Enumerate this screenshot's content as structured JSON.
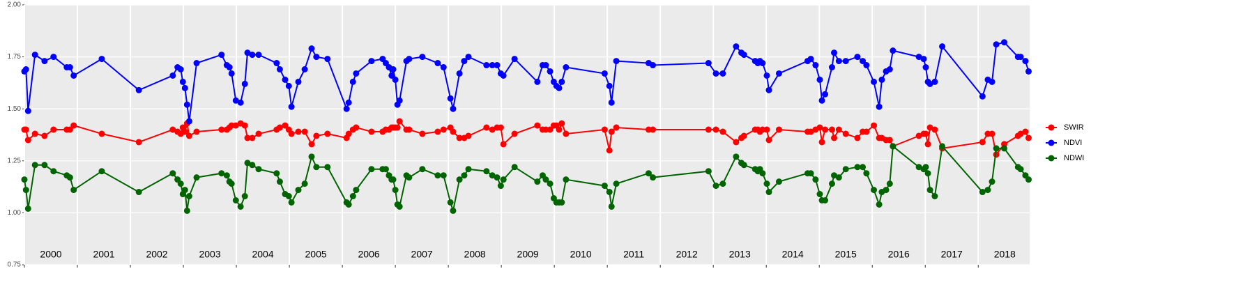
{
  "chart_data": {
    "type": "line",
    "x": [
      2000.0,
      2000.03,
      2000.07,
      2000.2,
      2000.38,
      2000.55,
      2000.8,
      2000.86,
      2000.93,
      2001.46,
      2002.16,
      2002.8,
      2002.89,
      2002.95,
      2002.99,
      2003.03,
      2003.07,
      2003.11,
      2003.25,
      2003.72,
      2003.82,
      2003.87,
      2003.91,
      2003.99,
      2004.08,
      2004.16,
      2004.21,
      2004.3,
      2004.42,
      2004.76,
      2004.82,
      2004.92,
      2004.99,
      2005.04,
      2005.17,
      2005.29,
      2005.42,
      2005.51,
      2005.72,
      2006.08,
      2006.12,
      2006.2,
      2006.26,
      2006.55,
      2006.76,
      2006.82,
      2006.88,
      2006.93,
      2006.96,
      2007.0,
      2007.04,
      2007.08,
      2007.21,
      2007.26,
      2007.51,
      2007.8,
      2007.91,
      2008.04,
      2008.09,
      2008.21,
      2008.3,
      2008.38,
      2008.72,
      2008.83,
      2008.92,
      2008.99,
      2009.04,
      2009.25,
      2009.68,
      2009.78,
      2009.84,
      2009.92,
      2009.99,
      2010.04,
      2010.09,
      2010.14,
      2010.22,
      2010.95,
      2011.04,
      2011.08,
      2011.17,
      2011.78,
      2011.86,
      2012.91,
      2013.05,
      2013.18,
      2013.43,
      2013.53,
      2013.58,
      2013.79,
      2013.84,
      2013.88,
      2013.93,
      2014.01,
      2014.05,
      2014.24,
      2014.78,
      2014.84,
      2014.93,
      2015.01,
      2015.05,
      2015.11,
      2015.24,
      2015.28,
      2015.37,
      2015.5,
      2015.72,
      2015.82,
      2015.89,
      2016.03,
      2016.13,
      2016.18,
      2016.26,
      2016.33,
      2016.39,
      2016.88,
      2016.97,
      2017.01,
      2017.05,
      2017.09,
      2017.18,
      2017.32,
      2018.08,
      2018.18,
      2018.26,
      2018.34,
      2018.49,
      2018.75,
      2018.8,
      2018.89,
      2018.95
    ],
    "series": [
      {
        "name": "SWIR",
        "color": "#ff0000",
        "values": [
          1.4,
          1.4,
          1.35,
          1.38,
          1.37,
          1.4,
          1.4,
          1.4,
          1.42,
          1.38,
          1.34,
          1.4,
          1.39,
          1.38,
          1.41,
          1.39,
          1.43,
          1.37,
          1.39,
          1.4,
          1.4,
          1.41,
          1.42,
          1.42,
          1.43,
          1.42,
          1.36,
          1.36,
          1.38,
          1.4,
          1.41,
          1.42,
          1.4,
          1.38,
          1.39,
          1.39,
          1.33,
          1.37,
          1.38,
          1.36,
          1.38,
          1.4,
          1.41,
          1.39,
          1.39,
          1.4,
          1.4,
          1.41,
          1.41,
          1.41,
          1.41,
          1.44,
          1.4,
          1.4,
          1.38,
          1.39,
          1.4,
          1.41,
          1.39,
          1.36,
          1.36,
          1.37,
          1.41,
          1.4,
          1.41,
          1.41,
          1.33,
          1.38,
          1.42,
          1.4,
          1.4,
          1.4,
          1.42,
          1.42,
          1.4,
          1.43,
          1.38,
          1.4,
          1.3,
          1.39,
          1.41,
          1.4,
          1.4,
          1.4,
          1.4,
          1.39,
          1.34,
          1.36,
          1.37,
          1.4,
          1.4,
          1.39,
          1.4,
          1.4,
          1.35,
          1.4,
          1.39,
          1.39,
          1.4,
          1.41,
          1.34,
          1.4,
          1.4,
          1.36,
          1.4,
          1.38,
          1.36,
          1.39,
          1.39,
          1.42,
          1.36,
          1.36,
          1.35,
          1.35,
          1.32,
          1.37,
          1.38,
          1.38,
          1.33,
          1.41,
          1.4,
          1.31,
          1.34,
          1.38,
          1.38,
          1.28,
          1.33,
          1.37,
          1.38,
          1.39,
          1.36
        ]
      },
      {
        "name": "NDVI",
        "color": "#0000ff",
        "values": [
          1.68,
          1.69,
          1.49,
          1.76,
          1.73,
          1.75,
          1.7,
          1.7,
          1.66,
          1.74,
          1.59,
          1.66,
          1.7,
          1.69,
          1.63,
          1.6,
          1.52,
          1.44,
          1.72,
          1.76,
          1.71,
          1.7,
          1.67,
          1.54,
          1.53,
          1.62,
          1.77,
          1.76,
          1.76,
          1.72,
          1.69,
          1.64,
          1.61,
          1.51,
          1.63,
          1.69,
          1.79,
          1.75,
          1.74,
          1.5,
          1.53,
          1.63,
          1.67,
          1.73,
          1.74,
          1.72,
          1.7,
          1.66,
          1.69,
          1.64,
          1.52,
          1.54,
          1.73,
          1.74,
          1.75,
          1.72,
          1.7,
          1.55,
          1.5,
          1.67,
          1.73,
          1.75,
          1.71,
          1.71,
          1.71,
          1.67,
          1.66,
          1.74,
          1.63,
          1.71,
          1.71,
          1.68,
          1.63,
          1.61,
          1.6,
          1.63,
          1.7,
          1.67,
          1.61,
          1.53,
          1.73,
          1.72,
          1.71,
          1.72,
          1.67,
          1.67,
          1.8,
          1.77,
          1.76,
          1.73,
          1.72,
          1.73,
          1.72,
          1.66,
          1.59,
          1.67,
          1.73,
          1.74,
          1.71,
          1.64,
          1.54,
          1.57,
          1.7,
          1.77,
          1.73,
          1.73,
          1.75,
          1.73,
          1.71,
          1.63,
          1.51,
          1.64,
          1.68,
          1.69,
          1.78,
          1.75,
          1.74,
          1.7,
          1.63,
          1.62,
          1.63,
          1.8,
          1.56,
          1.64,
          1.63,
          1.81,
          1.82,
          1.75,
          1.75,
          1.73,
          1.68
        ]
      },
      {
        "name": "NDWI",
        "color": "#006400",
        "values": [
          1.16,
          1.11,
          1.02,
          1.23,
          1.23,
          1.2,
          1.18,
          1.17,
          1.11,
          1.2,
          1.1,
          1.19,
          1.16,
          1.14,
          1.09,
          1.11,
          1.01,
          1.08,
          1.17,
          1.19,
          1.18,
          1.15,
          1.14,
          1.06,
          1.03,
          1.08,
          1.24,
          1.23,
          1.21,
          1.19,
          1.15,
          1.09,
          1.08,
          1.05,
          1.11,
          1.14,
          1.27,
          1.22,
          1.22,
          1.05,
          1.04,
          1.08,
          1.11,
          1.21,
          1.21,
          1.21,
          1.18,
          1.16,
          1.16,
          1.11,
          1.04,
          1.03,
          1.18,
          1.17,
          1.21,
          1.18,
          1.18,
          1.05,
          1.01,
          1.16,
          1.18,
          1.21,
          1.2,
          1.18,
          1.17,
          1.13,
          1.16,
          1.22,
          1.15,
          1.18,
          1.16,
          1.14,
          1.07,
          1.05,
          1.05,
          1.05,
          1.16,
          1.13,
          1.1,
          1.03,
          1.14,
          1.19,
          1.17,
          1.2,
          1.13,
          1.14,
          1.27,
          1.24,
          1.23,
          1.21,
          1.2,
          1.21,
          1.19,
          1.14,
          1.1,
          1.15,
          1.19,
          1.19,
          1.16,
          1.09,
          1.06,
          1.06,
          1.14,
          1.18,
          1.17,
          1.21,
          1.22,
          1.22,
          1.19,
          1.11,
          1.04,
          1.1,
          1.11,
          1.14,
          1.32,
          1.22,
          1.21,
          1.22,
          1.19,
          1.11,
          1.08,
          1.32,
          1.1,
          1.11,
          1.15,
          1.31,
          1.31,
          1.22,
          1.21,
          1.18,
          1.16
        ]
      }
    ],
    "xlim": [
      2000,
      2018.97
    ],
    "xticks": [
      2000,
      2001,
      2002,
      2003,
      2004,
      2005,
      2006,
      2007,
      2008,
      2009,
      2010,
      2011,
      2012,
      2013,
      2014,
      2015,
      2016,
      2017,
      2018
    ],
    "year_labels": [
      {
        "value": 2000.5,
        "label": "2000"
      },
      {
        "value": 2001.5,
        "label": "2001"
      },
      {
        "value": 2002.5,
        "label": "2002"
      },
      {
        "value": 2003.5,
        "label": "2003"
      },
      {
        "value": 2004.5,
        "label": "2004"
      },
      {
        "value": 2005.5,
        "label": "2005"
      },
      {
        "value": 2006.5,
        "label": "2006"
      },
      {
        "value": 2007.5,
        "label": "2007"
      },
      {
        "value": 2008.5,
        "label": "2008"
      },
      {
        "value": 2009.5,
        "label": "2009"
      },
      {
        "value": 2010.5,
        "label": "2010"
      },
      {
        "value": 2011.5,
        "label": "2011"
      },
      {
        "value": 2012.5,
        "label": "2012"
      },
      {
        "value": 2013.5,
        "label": "2013"
      },
      {
        "value": 2014.5,
        "label": "2014"
      },
      {
        "value": 2015.5,
        "label": "2015"
      },
      {
        "value": 2016.5,
        "label": "2016"
      },
      {
        "value": 2017.5,
        "label": "2017"
      },
      {
        "value": 2018.5,
        "label": "2018"
      }
    ],
    "ylim": [
      0.75,
      2.0
    ],
    "yticks": [
      {
        "value": 0.75,
        "label": "0.75"
      },
      {
        "value": 1.0,
        "label": "1.00"
      },
      {
        "value": 1.25,
        "label": "1.25"
      },
      {
        "value": 1.5,
        "label": "1.50"
      },
      {
        "value": 1.75,
        "label": "1.75"
      },
      {
        "value": 2.0,
        "label": "2.00"
      }
    ],
    "grid": true,
    "legend": "right"
  }
}
